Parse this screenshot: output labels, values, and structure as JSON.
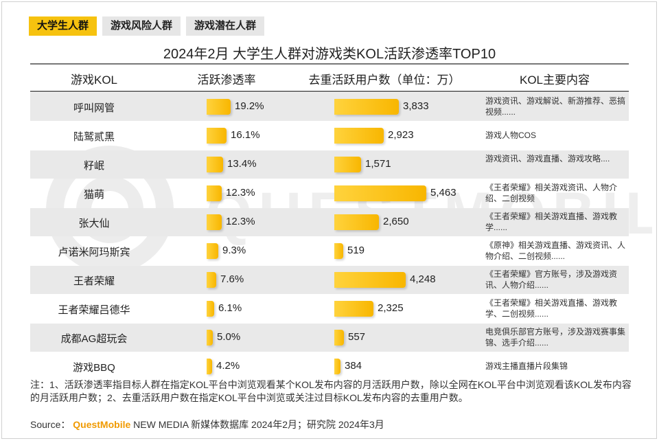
{
  "tabs": [
    {
      "label": "大学生人群",
      "active": true
    },
    {
      "label": "游戏风险人群",
      "active": false
    },
    {
      "label": "游戏潜在人群",
      "active": false
    }
  ],
  "watermark": "QUESTMOBILE",
  "chart_data": {
    "type": "table",
    "title": "2024年2月 大学生人群对游戏类KOL活跃渗透率TOP10",
    "columns": [
      "游戏KOL",
      "活跃渗透率",
      "去重活跃用户数（单位：万）",
      "KOL主要内容"
    ],
    "rows": [
      {
        "name": "呼叫网管",
        "rate": 19.2,
        "rate_label": "19.2%",
        "users": 3833,
        "users_label": "3,833",
        "content": "游戏资讯、游戏解说、新游推荐、恶搞视频......"
      },
      {
        "name": "陆鹫贰黑",
        "rate": 16.1,
        "rate_label": "16.1%",
        "users": 2923,
        "users_label": "2,923",
        "content": "游戏人物COS"
      },
      {
        "name": "籽岷",
        "rate": 13.4,
        "rate_label": "13.4%",
        "users": 1571,
        "users_label": "1,571",
        "content": "游戏资讯、游戏直播、游戏攻略...."
      },
      {
        "name": "猫萌",
        "rate": 12.3,
        "rate_label": "12.3%",
        "users": 5463,
        "users_label": "5,463",
        "content": "《王者荣耀》相关游戏资讯、人物介绍、二创视频"
      },
      {
        "name": "张大仙",
        "rate": 12.3,
        "rate_label": "12.3%",
        "users": 2650,
        "users_label": "2,650",
        "content": "《王者荣耀》相关游戏直播、游戏教学......"
      },
      {
        "name": "卢诺米阿玛斯宾",
        "rate": 9.3,
        "rate_label": "9.3%",
        "users": 519,
        "users_label": "519",
        "content": "《原神》相关游戏直播、游戏资讯、人物介绍、二创视频......"
      },
      {
        "name": "王者荣耀",
        "rate": 7.6,
        "rate_label": "7.6%",
        "users": 4248,
        "users_label": "4,248",
        "content": "《王者荣耀》官方账号，涉及游戏资讯、人物介绍......"
      },
      {
        "name": "王者荣耀吕德华",
        "rate": 6.1,
        "rate_label": "6.1%",
        "users": 2325,
        "users_label": "2,325",
        "content": "《王者荣耀》相关游戏直播、游戏教学、二创视频......"
      },
      {
        "name": "成都AG超玩会",
        "rate": 5.0,
        "rate_label": "5.0%",
        "users": 557,
        "users_label": "557",
        "content": "电竞俱乐部官方账号，涉及游戏赛事集锦、选手介绍......"
      },
      {
        "name": "游戏BBQ",
        "rate": 4.2,
        "rate_label": "4.2%",
        "users": 384,
        "users_label": "384",
        "content": "游戏主播直播片段集锦"
      }
    ],
    "rate_max": 19.2,
    "users_max": 5463
  },
  "note": "注：1、活跃渗透率指目标人群在指定KOL平台中浏览观看某个KOL发布内容的月活跃用户数，除以全网在KOL平台中浏览观看该KOL发布内容的月活跃用户数；2、去重活跃用户数在指定KOL平台中浏览或关注过目标KOL发布内容的去重用户数。",
  "source": {
    "prefix": "Source：",
    "brand": "QuestMobile",
    "rest": " NEW MEDIA 新媒体数据库 2024年2月；研究院 2024年3月"
  }
}
